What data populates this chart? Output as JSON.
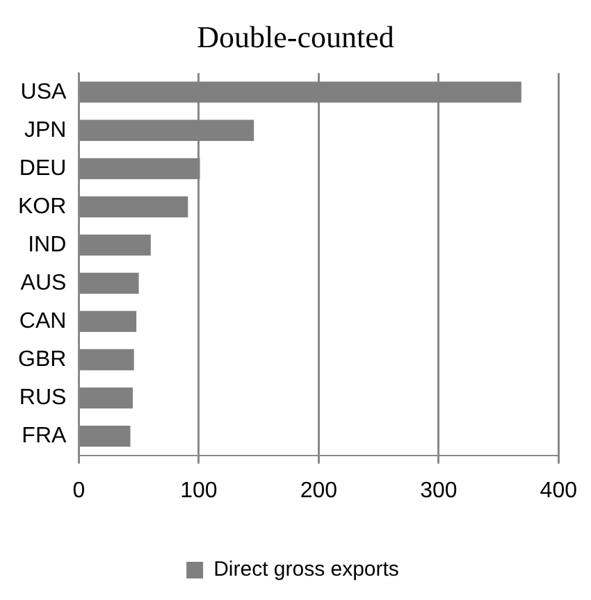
{
  "chart_data": {
    "type": "bar",
    "orientation": "horizontal",
    "title": "Double-counted",
    "categories": [
      "USA",
      "JPN",
      "DEU",
      "KOR",
      "IND",
      "AUS",
      "CAN",
      "GBR",
      "RUS",
      "FRA"
    ],
    "series": [
      {
        "name": "Direct gross exports",
        "color": "#808080",
        "values": [
          369,
          146,
          101,
          91,
          60,
          50,
          48,
          46,
          45,
          43
        ]
      }
    ],
    "xlim": [
      0,
      400
    ],
    "xticks": [
      0,
      100,
      200,
      300,
      400
    ],
    "grid": "x",
    "legend": "bottom"
  }
}
